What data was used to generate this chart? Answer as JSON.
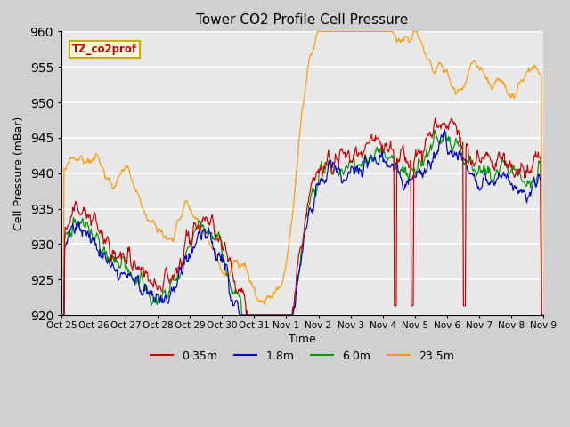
{
  "title": "Tower CO2 Profile Cell Pressure",
  "xlabel": "Time",
  "ylabel": "Cell Pressure (mBar)",
  "ylim": [
    920,
    960
  ],
  "legend_label": "TZ_co2prof",
  "series_labels": [
    "0.35m",
    "1.8m",
    "6.0m",
    "23.5m"
  ],
  "series_colors": [
    "#cc0000",
    "#0000cc",
    "#009900",
    "#ff9900"
  ],
  "tick_labels": [
    "Oct 25",
    "Oct 26",
    "Oct 27",
    "Oct 28",
    "Oct 29",
    "Oct 30",
    "Oct 31",
    "Nov 1",
    "Nov 2",
    "Nov 3",
    "Nov 4",
    "Nov 5",
    "Nov 6",
    "Nov 7",
    "Nov 8",
    "Nov 9"
  ],
  "fig_width": 6.4,
  "fig_height": 4.8,
  "dpi": 100,
  "fig_facecolor": "#d0d0d0",
  "ax_facecolor": "#e8e8e8",
  "grid_color": "#ffffff",
  "title_fontsize": 11,
  "label_fontsize": 9,
  "tick_fontsize": 7.5,
  "legend_fontsize": 9
}
